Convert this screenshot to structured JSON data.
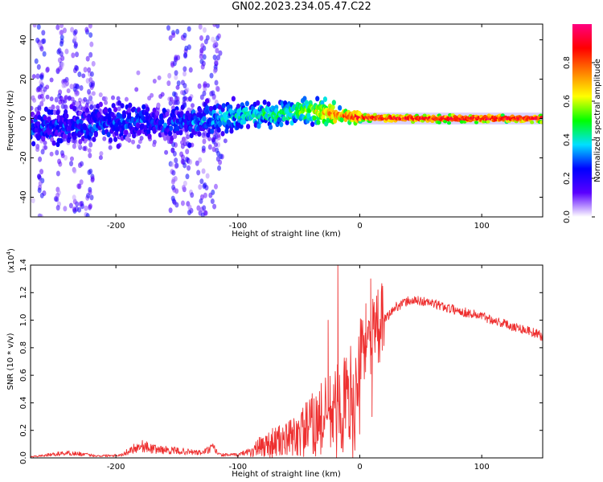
{
  "title": "GN02.2023.234.05.47.C22",
  "colors": {
    "signal_line": "#ee3030",
    "axis": "#000000"
  },
  "chart_data": [
    {
      "type": "heatmap",
      "title": "GN02.2023.234.05.47.C22",
      "xlabel": "Height of straight line (km)",
      "ylabel": "Frequency (Hz)",
      "xlim": [
        -270,
        150
      ],
      "ylim": [
        -50,
        48
      ],
      "xticks": [
        -200,
        -100,
        0,
        100
      ],
      "yticks": [
        -40,
        -20,
        0,
        20,
        40
      ],
      "colorbar": {
        "label": "Normalized spectral amplitude",
        "range": [
          0,
          1
        ],
        "ticks": [
          "0.0",
          "0.2",
          "0.4",
          "0.6",
          "0.8"
        ],
        "stops": [
          "#ffffff",
          "#5a00ff",
          "#0000ff",
          "#00e0ff",
          "#00ff00",
          "#ffff00",
          "#ff8000",
          "#ff0000",
          "#ff0080"
        ]
      },
      "ridge": [
        {
          "x": -260,
          "f": -5
        },
        {
          "x": -240,
          "f": -4
        },
        {
          "x": -220,
          "f": -3
        },
        {
          "x": -200,
          "f": -2
        },
        {
          "x": -180,
          "f": -1
        },
        {
          "x": -160,
          "f": -3
        },
        {
          "x": -140,
          "f": -2
        },
        {
          "x": -120,
          "f": 0
        },
        {
          "x": -100,
          "f": 1
        },
        {
          "x": -80,
          "f": 2
        },
        {
          "x": -60,
          "f": 3
        },
        {
          "x": -40,
          "f": 4
        },
        {
          "x": -20,
          "f": 2
        },
        {
          "x": 0,
          "f": 0.5
        },
        {
          "x": 50,
          "f": 0
        },
        {
          "x": 100,
          "f": 0
        },
        {
          "x": 150,
          "f": 0
        }
      ],
      "ridge_amplitude": [
        {
          "x": -270,
          "a": 0.25
        },
        {
          "x": -150,
          "a": 0.25
        },
        {
          "x": -110,
          "a": 0.35
        },
        {
          "x": -70,
          "a": 0.45
        },
        {
          "x": -40,
          "a": 0.55
        },
        {
          "x": -20,
          "a": 0.75
        },
        {
          "x": 0,
          "a": 0.9
        },
        {
          "x": 150,
          "a": 0.95
        }
      ],
      "noise_columns_x": [
        -262,
        -245,
        -232,
        -222,
        -152,
        -143,
        -128,
        -118
      ]
    },
    {
      "type": "line",
      "xlabel": "Height of straight line (km)",
      "ylabel": "SNR (10 * v/v)",
      "scale_label": "(x10",
      "scale_exponent": "4",
      "xlim": [
        -270,
        150
      ],
      "ylim": [
        0,
        1.4
      ],
      "xticks": [
        -200,
        -100,
        0,
        100
      ],
      "yticks": [
        0.0,
        0.2,
        0.4,
        0.6,
        0.8,
        1.0,
        1.2,
        1.4
      ],
      "series": [
        {
          "name": "SNR",
          "envelope": [
            {
              "x": -270,
              "y": 0.01
            },
            {
              "x": -255,
              "y": 0.03
            },
            {
              "x": -240,
              "y": 0.05
            },
            {
              "x": -230,
              "y": 0.04
            },
            {
              "x": -215,
              "y": 0.02
            },
            {
              "x": -195,
              "y": 0.03
            },
            {
              "x": -185,
              "y": 0.1
            },
            {
              "x": -178,
              "y": 0.12
            },
            {
              "x": -170,
              "y": 0.09
            },
            {
              "x": -150,
              "y": 0.07
            },
            {
              "x": -130,
              "y": 0.05
            },
            {
              "x": -120,
              "y": 0.1
            },
            {
              "x": -115,
              "y": 0.03
            },
            {
              "x": -100,
              "y": 0.03
            },
            {
              "x": -90,
              "y": 0.07
            },
            {
              "x": -80,
              "y": 0.15
            },
            {
              "x": -70,
              "y": 0.2
            },
            {
              "x": -60,
              "y": 0.22
            },
            {
              "x": -50,
              "y": 0.3
            },
            {
              "x": -40,
              "y": 0.4
            },
            {
              "x": -30,
              "y": 0.5
            },
            {
              "x": -20,
              "y": 0.58
            },
            {
              "x": -10,
              "y": 0.7
            },
            {
              "x": 0,
              "y": 0.78
            },
            {
              "x": 10,
              "y": 0.88
            },
            {
              "x": 20,
              "y": 1.0
            },
            {
              "x": 30,
              "y": 1.1
            },
            {
              "x": 40,
              "y": 1.14
            },
            {
              "x": 50,
              "y": 1.14
            },
            {
              "x": 60,
              "y": 1.12
            },
            {
              "x": 80,
              "y": 1.07
            },
            {
              "x": 100,
              "y": 1.03
            },
            {
              "x": 120,
              "y": 0.97
            },
            {
              "x": 140,
              "y": 0.92
            },
            {
              "x": 150,
              "y": 0.88
            }
          ],
          "spikes": [
            {
              "x": -18,
              "y": 1.4
            },
            {
              "x": 9,
              "y": 1.3
            },
            {
              "x": -26,
              "y": 1.0
            },
            {
              "x": 5,
              "y": 1.12
            },
            {
              "x": 10,
              "y": 0.3
            },
            {
              "x": -8,
              "y": 0.15
            }
          ]
        }
      ]
    }
  ]
}
